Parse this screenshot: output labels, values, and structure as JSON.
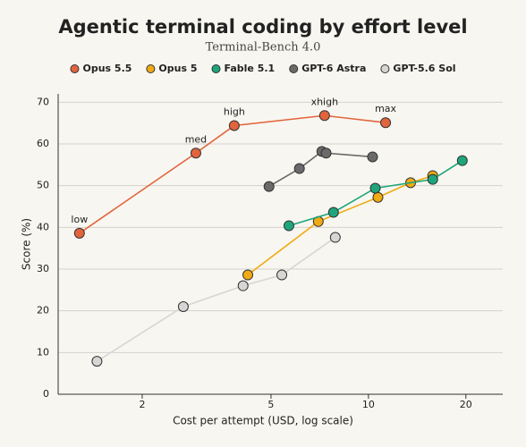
{
  "chart_data": {
    "type": "line",
    "title": "Agentic terminal coding by effort level",
    "subtitle": "Terminal-Bench 4.0",
    "x_label": "Cost per attempt (USD, log scale)",
    "y_label": "Score (%)",
    "xscale": "log",
    "xlim": [
      1.1,
      26
    ],
    "xticks": [
      2,
      5,
      10,
      20
    ],
    "ylim": [
      0,
      72
    ],
    "yticks": [
      0,
      10,
      20,
      30,
      40,
      50,
      60,
      70
    ],
    "grid": true,
    "legend": "top",
    "series": [
      {
        "name": "Opus 5.5",
        "color": "#e2643c",
        "x": [
          1.28,
          2.93,
          3.85,
          7.32,
          11.3
        ],
        "values": [
          38.6,
          57.8,
          64.4,
          66.8,
          65.1
        ],
        "point_labels": [
          "low",
          "med",
          "high",
          "xhigh",
          "max"
        ]
      },
      {
        "name": "Opus 5",
        "color": "#f0aa12",
        "x": [
          4.24,
          7.0,
          10.7,
          13.5,
          15.8
        ],
        "values": [
          28.6,
          41.4,
          47.2,
          50.7,
          52.4
        ]
      },
      {
        "name": "Fable 5.1",
        "color": "#1ea57c",
        "x": [
          5.68,
          7.8,
          10.5,
          15.8,
          19.5
        ],
        "values": [
          40.4,
          43.6,
          49.4,
          51.5,
          56.0
        ]
      },
      {
        "name": "GPT-6 Astra",
        "color": "#6a6a6a",
        "x": [
          4.93,
          6.12,
          7.18,
          7.4,
          10.3
        ],
        "values": [
          49.8,
          54.1,
          58.2,
          57.8,
          56.9
        ]
      },
      {
        "name": "GPT-5.6 Sol",
        "color": "#d6d6d4",
        "x": [
          1.45,
          2.68,
          4.1,
          5.4,
          7.9
        ],
        "values": [
          7.9,
          21.0,
          26.0,
          28.6,
          37.6
        ]
      }
    ]
  }
}
